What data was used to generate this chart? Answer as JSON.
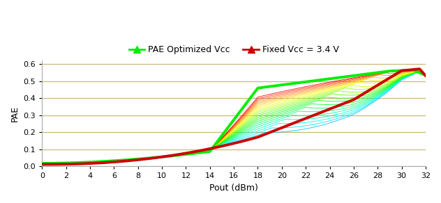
{
  "xlabel": "Pout (dBm)",
  "ylabel": "PAE",
  "xlim": [
    0,
    32
  ],
  "ylim": [
    0,
    0.62
  ],
  "xticks": [
    0,
    2,
    4,
    6,
    8,
    10,
    12,
    14,
    16,
    18,
    20,
    22,
    24,
    26,
    28,
    30,
    32
  ],
  "yticks": [
    0.0,
    0.1,
    0.2,
    0.3,
    0.4,
    0.5,
    0.6
  ],
  "bg_color": "#ffffff",
  "grid_color": "#c8b87a",
  "green_color": "#00ee00",
  "red_color": "#cc0000",
  "num_inner_curves": 22,
  "legend_green": "PAE Optimized Vcc",
  "legend_red": "Fixed Vcc = 3.4 V"
}
